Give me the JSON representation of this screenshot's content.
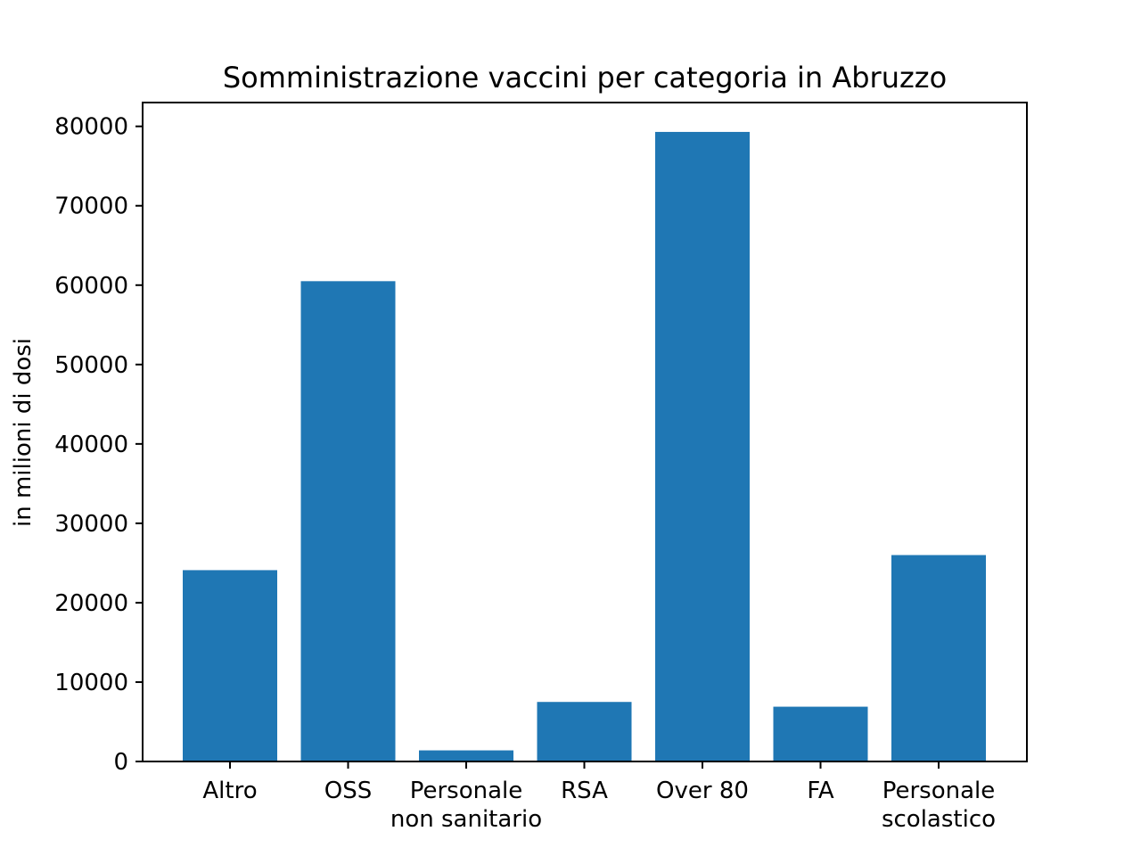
{
  "chart_data": {
    "type": "bar",
    "title": "Somministrazione vaccini per categoria in Abruzzo",
    "xlabel": "",
    "ylabel": "in milioni di dosi",
    "categories": [
      [
        "Altro"
      ],
      [
        "OSS"
      ],
      [
        "Personale",
        "non sanitario"
      ],
      [
        "RSA"
      ],
      [
        "Over 80"
      ],
      [
        "FA"
      ],
      [
        "Personale",
        "scolastico"
      ]
    ],
    "values": [
      24100,
      60500,
      1400,
      7500,
      79300,
      6900,
      26000
    ],
    "ylim": [
      0,
      83000
    ],
    "yticks": [
      0,
      10000,
      20000,
      30000,
      40000,
      50000,
      60000,
      70000,
      80000
    ],
    "bar_color": "#1f77b4",
    "grid": false
  }
}
